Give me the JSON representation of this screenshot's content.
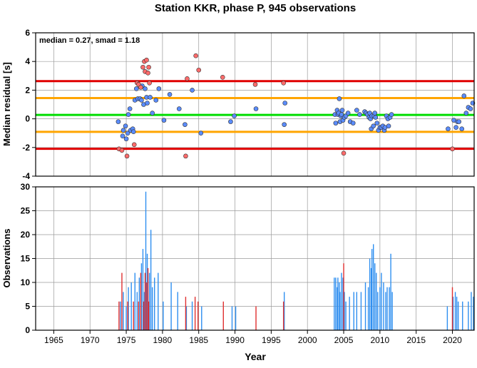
{
  "chart_data": [
    {
      "type": "scatter",
      "title": "Station KKR, phase P, 945 observations",
      "ylabel": "Median residual [s]",
      "annotation": "median = 0.27, smad = 1.18",
      "xlim": [
        1962.5,
        2023
      ],
      "ylim": [
        -4,
        6
      ],
      "y_ticks": [
        -4,
        -2,
        0,
        2,
        4,
        6
      ],
      "grid": true,
      "reference_lines": [
        {
          "y": 2.63,
          "color": "#e00000"
        },
        {
          "y": 1.45,
          "color": "#ffa500"
        },
        {
          "y": 0.27,
          "color": "#00dd00"
        },
        {
          "y": -0.91,
          "color": "#ffa500"
        },
        {
          "y": -2.09,
          "color": "#e00000"
        }
      ],
      "series": [
        {
          "color": "#5a8cff",
          "points": [
            [
              1973.9,
              -0.2
            ],
            [
              1974.5,
              -1.2
            ],
            [
              1974.6,
              -0.8
            ],
            [
              1974.9,
              -0.5
            ],
            [
              1975.0,
              -1.4
            ],
            [
              1975.2,
              -1.0
            ],
            [
              1975.3,
              0.3
            ],
            [
              1975.5,
              0.7
            ],
            [
              1975.6,
              -0.8
            ],
            [
              1975.9,
              -0.7
            ],
            [
              1976.0,
              -0.9
            ],
            [
              1976.2,
              1.3
            ],
            [
              1976.4,
              2.1
            ],
            [
              1976.6,
              1.4
            ],
            [
              1976.9,
              1.4
            ],
            [
              1977.1,
              1.3
            ],
            [
              1977.2,
              2.3
            ],
            [
              1977.4,
              1.0
            ],
            [
              1977.6,
              2.1
            ],
            [
              1977.8,
              1.5
            ],
            [
              1977.9,
              1.1
            ],
            [
              1978.3,
              1.5
            ],
            [
              1978.6,
              0.4
            ],
            [
              1979.1,
              1.3
            ],
            [
              1979.5,
              2.1
            ],
            [
              1980.2,
              -0.1
            ],
            [
              1981.0,
              1.7
            ],
            [
              1982.3,
              0.7
            ],
            [
              1983.1,
              -0.4
            ],
            [
              1984.1,
              2.0
            ],
            [
              1985.3,
              -1.0
            ],
            [
              1989.4,
              -0.2
            ],
            [
              1989.9,
              0.2
            ],
            [
              1992.9,
              0.7
            ],
            [
              1996.8,
              -0.4
            ],
            [
              1996.9,
              1.1
            ],
            [
              2003.8,
              0.3
            ],
            [
              2003.9,
              -0.3
            ],
            [
              2004.1,
              0.6
            ],
            [
              2004.2,
              0.3
            ],
            [
              2004.3,
              0.4
            ],
            [
              2004.4,
              1.4
            ],
            [
              2004.5,
              -0.2
            ],
            [
              2004.6,
              0.2
            ],
            [
              2004.7,
              0.3
            ],
            [
              2004.8,
              0.6
            ],
            [
              2004.9,
              -0.1
            ],
            [
              2005.1,
              0.1
            ],
            [
              2005.3,
              0.2
            ],
            [
              2005.6,
              0.4
            ],
            [
              2005.9,
              -0.2
            ],
            [
              2006.3,
              -0.3
            ],
            [
              2006.8,
              0.6
            ],
            [
              2007.2,
              0.3
            ],
            [
              2007.9,
              0.5
            ],
            [
              2008.1,
              0.4
            ],
            [
              2008.3,
              0.3
            ],
            [
              2008.5,
              0.1
            ],
            [
              2008.6,
              0.4
            ],
            [
              2008.7,
              0.0
            ],
            [
              2008.8,
              -0.7
            ],
            [
              2008.9,
              0.2
            ],
            [
              2009.1,
              -0.5
            ],
            [
              2009.2,
              0.2
            ],
            [
              2009.3,
              0.4
            ],
            [
              2009.4,
              0.1
            ],
            [
              2009.6,
              -0.3
            ],
            [
              2009.8,
              -0.8
            ],
            [
              2010.0,
              -0.6
            ],
            [
              2010.2,
              -0.6
            ],
            [
              2010.4,
              -0.5
            ],
            [
              2010.6,
              -0.8
            ],
            [
              2010.7,
              -0.6
            ],
            [
              2010.9,
              0.2
            ],
            [
              2011.1,
              0.0
            ],
            [
              2011.2,
              -0.5
            ],
            [
              2011.4,
              0.1
            ],
            [
              2011.6,
              0.3
            ],
            [
              2019.4,
              -0.7
            ],
            [
              2020.2,
              -0.1
            ],
            [
              2020.5,
              -0.6
            ],
            [
              2020.7,
              -0.2
            ],
            [
              2020.9,
              -0.2
            ],
            [
              2021.3,
              -0.7
            ],
            [
              2021.6,
              1.6
            ],
            [
              2021.9,
              0.4
            ],
            [
              2022.2,
              0.8
            ],
            [
              2022.5,
              0.7
            ],
            [
              2022.8,
              1.1
            ]
          ]
        },
        {
          "color": "#ff6b6b",
          "points": [
            [
              1974.0,
              -2.1
            ],
            [
              1974.4,
              -2.2
            ],
            [
              1975.1,
              -2.6
            ],
            [
              1976.1,
              -1.8
            ],
            [
              1976.5,
              2.5
            ],
            [
              1976.7,
              2.4
            ],
            [
              1977.0,
              2.2
            ],
            [
              1977.3,
              3.6
            ],
            [
              1977.5,
              4.0
            ],
            [
              1977.6,
              3.3
            ],
            [
              1977.8,
              4.1
            ],
            [
              1978.0,
              3.2
            ],
            [
              1978.1,
              3.6
            ],
            [
              1978.2,
              2.5
            ],
            [
              1983.2,
              -2.6
            ],
            [
              1983.4,
              2.8
            ],
            [
              1984.6,
              4.4
            ],
            [
              1985.0,
              3.4
            ],
            [
              1988.3,
              2.9
            ],
            [
              1992.8,
              2.4
            ],
            [
              1996.7,
              2.5
            ],
            [
              2005.0,
              -2.4
            ],
            [
              2020.0,
              -2.1
            ]
          ]
        }
      ]
    },
    {
      "type": "bar",
      "xlabel": "Year",
      "ylabel": "Observations",
      "xlim": [
        1962.5,
        2023
      ],
      "ylim": [
        0,
        30
      ],
      "x_ticks": [
        1965,
        1970,
        1975,
        1980,
        1985,
        1990,
        1995,
        2000,
        2005,
        2010,
        2015,
        2020
      ],
      "y_ticks": [
        0,
        5,
        10,
        15,
        20,
        25,
        30
      ],
      "grid": true,
      "series": [
        {
          "color": "#2f8ff0",
          "bars": [
            [
              1974.2,
              6
            ],
            [
              1974.6,
              8
            ],
            [
              1975.0,
              5
            ],
            [
              1975.3,
              9
            ],
            [
              1975.7,
              10
            ],
            [
              1976.2,
              12
            ],
            [
              1976.5,
              8
            ],
            [
              1976.8,
              11
            ],
            [
              1977.1,
              14
            ],
            [
              1977.3,
              17
            ],
            [
              1977.5,
              8
            ],
            [
              1977.7,
              29
            ],
            [
              1977.9,
              16
            ],
            [
              1978.2,
              12
            ],
            [
              1978.4,
              21
            ],
            [
              1978.6,
              9
            ],
            [
              1978.9,
              11
            ],
            [
              1979.4,
              12
            ],
            [
              1980.1,
              6
            ],
            [
              1981.2,
              10
            ],
            [
              1982.1,
              8
            ],
            [
              1983.3,
              5
            ],
            [
              1984.1,
              6
            ],
            [
              1985.4,
              5
            ],
            [
              1989.6,
              5
            ],
            [
              1990.1,
              5
            ],
            [
              1996.8,
              8
            ],
            [
              2003.7,
              11
            ],
            [
              2003.9,
              11
            ],
            [
              2004.1,
              9
            ],
            [
              2004.2,
              11
            ],
            [
              2004.4,
              10
            ],
            [
              2004.5,
              8
            ],
            [
              2004.7,
              12
            ],
            [
              2004.9,
              11
            ],
            [
              2005.1,
              8
            ],
            [
              2005.3,
              6
            ],
            [
              2005.8,
              7
            ],
            [
              2006.4,
              8
            ],
            [
              2006.8,
              8
            ],
            [
              2007.4,
              8
            ],
            [
              2008.0,
              10
            ],
            [
              2008.4,
              9
            ],
            [
              2008.6,
              15
            ],
            [
              2008.8,
              13
            ],
            [
              2008.9,
              17
            ],
            [
              2009.1,
              18
            ],
            [
              2009.3,
              14
            ],
            [
              2009.5,
              12
            ],
            [
              2009.7,
              8
            ],
            [
              2010.0,
              9
            ],
            [
              2010.2,
              12
            ],
            [
              2010.5,
              10
            ],
            [
              2010.8,
              8
            ],
            [
              2011.0,
              9
            ],
            [
              2011.3,
              9
            ],
            [
              2011.5,
              16
            ],
            [
              2011.7,
              8
            ],
            [
              2019.3,
              5
            ],
            [
              2020.1,
              7
            ],
            [
              2020.4,
              8
            ],
            [
              2020.6,
              7
            ],
            [
              2020.8,
              6
            ],
            [
              2021.4,
              6
            ],
            [
              2022.2,
              6
            ],
            [
              2022.6,
              8
            ],
            [
              2022.9,
              7
            ]
          ]
        },
        {
          "color": "#e03030",
          "bars": [
            [
              1974.0,
              6
            ],
            [
              1974.4,
              12
            ],
            [
              1975.2,
              6
            ],
            [
              1976.0,
              6
            ],
            [
              1976.7,
              6
            ],
            [
              1977.0,
              12
            ],
            [
              1977.4,
              6
            ],
            [
              1977.6,
              12
            ],
            [
              1977.8,
              10
            ],
            [
              1978.0,
              13
            ],
            [
              1978.1,
              6
            ],
            [
              1983.2,
              7
            ],
            [
              1984.5,
              7
            ],
            [
              1984.9,
              6
            ],
            [
              1988.4,
              6
            ],
            [
              1992.9,
              5
            ],
            [
              1996.7,
              6
            ],
            [
              2005.0,
              14
            ],
            [
              2020.0,
              9
            ]
          ]
        }
      ]
    }
  ]
}
